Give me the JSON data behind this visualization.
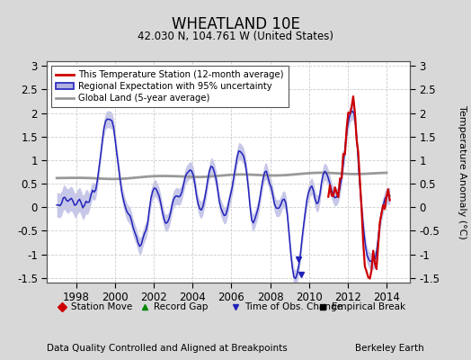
{
  "title": "WHEATLAND 10E",
  "subtitle": "42.030 N, 104.761 W (United States)",
  "ylabel": "Temperature Anomaly (°C)",
  "xlabel_note": "Data Quality Controlled and Aligned at Breakpoints",
  "credit": "Berkeley Earth",
  "xlim": [
    1996.5,
    2015.2
  ],
  "ylim": [
    -1.6,
    3.1
  ],
  "yticks": [
    -1.5,
    -1.0,
    -0.5,
    0.0,
    0.5,
    1.0,
    1.5,
    2.0,
    2.5,
    3.0
  ],
  "xticks": [
    1998,
    2000,
    2002,
    2004,
    2006,
    2008,
    2010,
    2012,
    2014
  ],
  "fig_bg_color": "#d8d8d8",
  "plot_bg_color": "#ffffff",
  "regional_color": "#2222bb",
  "regional_fill_color": "#b0b0e0",
  "station_color": "#cc0000",
  "global_color": "#999999",
  "legend_labels": [
    "This Temperature Station (12-month average)",
    "Regional Expectation with 95% uncertainty",
    "Global Land (5-year average)"
  ],
  "marker_legend": [
    "Station Move",
    "Record Gap",
    "Time of Obs. Change",
    "Empirical Break"
  ],
  "marker_colors": [
    "#cc0000",
    "#008800",
    "#2222bb",
    "#000000"
  ]
}
